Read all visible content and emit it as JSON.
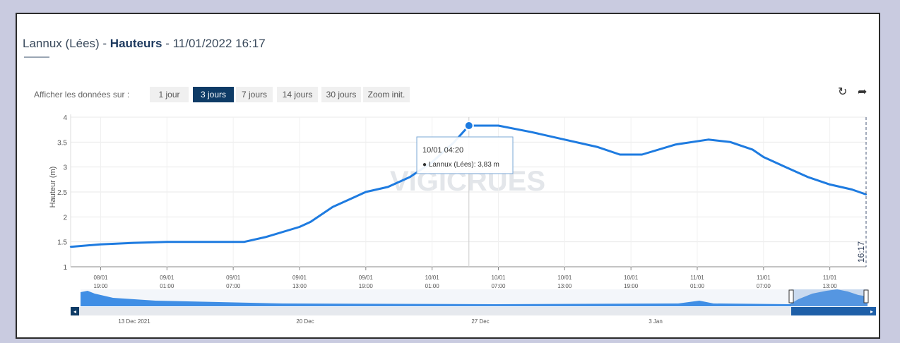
{
  "header": {
    "station": "Lannux (Lées)",
    "sep": " - ",
    "measure": "Hauteurs",
    "datetime": " - 11/01/2022 16:17"
  },
  "range": {
    "label": "Afficher les données sur :",
    "buttons": [
      "1 jour",
      "3 jours",
      "7 jours",
      "14 jours",
      "30 jours",
      "Zoom init."
    ],
    "active_index": 1
  },
  "toolbar": {
    "refresh_icon": "refresh-icon",
    "share_icon": "share-icon",
    "refresh_glyph": "↻",
    "share_glyph": "➦"
  },
  "colors": {
    "series": "#1e7be0",
    "active_button": "#0e3b66",
    "navigator": "#1e5fa8"
  },
  "watermark": "VIGICRUES",
  "tooltip": {
    "date": "10/01 04:20",
    "line": "● Lannux (Lées): 3,83 m"
  },
  "now_label": "16:17",
  "chart_data": {
    "type": "line",
    "ylabel": "Hauteur (m)",
    "ylim": [
      1,
      4
    ],
    "yticks": [
      1,
      1.5,
      2,
      2.5,
      3,
      3.5,
      4
    ],
    "ytick_labels": [
      "1",
      "1.5",
      "2",
      "2.5",
      "3",
      "3.5",
      "4"
    ],
    "grid": true,
    "xticks": [
      {
        "day": "08/01",
        "time": "19:00"
      },
      {
        "day": "09/01",
        "time": "01:00"
      },
      {
        "day": "09/01",
        "time": "07:00"
      },
      {
        "day": "09/01",
        "time": "13:00"
      },
      {
        "day": "09/01",
        "time": "19:00"
      },
      {
        "day": "10/01",
        "time": "01:00"
      },
      {
        "day": "10/01",
        "time": "07:00"
      },
      {
        "day": "10/01",
        "time": "13:00"
      },
      {
        "day": "10/01",
        "time": "19:00"
      },
      {
        "day": "11/01",
        "time": "01:00"
      },
      {
        "day": "11/01",
        "time": "07:00"
      },
      {
        "day": "11/01",
        "time": "13:00"
      }
    ],
    "series": [
      {
        "name": "Lannux (Lées)",
        "x": [
          "08/01 16:17",
          "08/01 19:00",
          "08/01 22:00",
          "09/01 01:00",
          "09/01 04:00",
          "09/01 07:00",
          "09/01 08:00",
          "09/01 10:00",
          "09/01 13:00",
          "09/01 14:00",
          "09/01 16:00",
          "09/01 18:00",
          "09/01 19:00",
          "09/01 21:00",
          "09/01 23:00",
          "10/01 01:00",
          "10/01 03:00",
          "10/01 04:20",
          "10/01 07:00",
          "10/01 10:00",
          "10/01 13:00",
          "10/01 16:00",
          "10/01 18:00",
          "10/01 20:00",
          "10/01 23:00",
          "11/01 02:00",
          "11/01 04:00",
          "11/01 06:00",
          "11/01 07:00",
          "11/01 09:00",
          "11/01 11:00",
          "11/01 13:00",
          "11/01 15:00",
          "11/01 16:17"
        ],
        "values": [
          1.4,
          1.45,
          1.48,
          1.5,
          1.5,
          1.5,
          1.5,
          1.6,
          1.8,
          1.9,
          2.2,
          2.4,
          2.5,
          2.6,
          2.8,
          3.1,
          3.5,
          3.83,
          3.83,
          3.7,
          3.55,
          3.4,
          3.25,
          3.25,
          3.45,
          3.55,
          3.5,
          3.35,
          3.2,
          3.0,
          2.8,
          2.65,
          2.55,
          2.45
        ]
      }
    ],
    "navigator": {
      "labels": [
        "13 Dec 2021",
        "20 Dec",
        "27 Dec",
        "3 Jan"
      ]
    }
  }
}
